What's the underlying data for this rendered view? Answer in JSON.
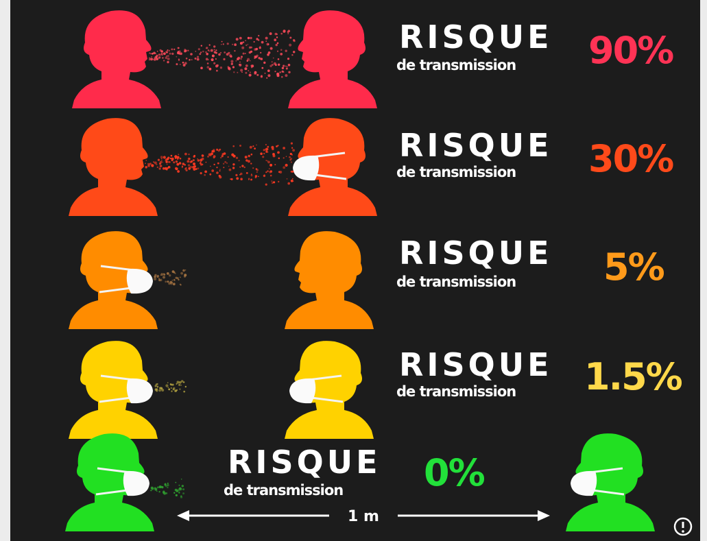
{
  "rows": [
    {
      "title": "RISQUE",
      "subtitle": "de transmission",
      "risk": "90%"
    },
    {
      "title": "RISQUE",
      "subtitle": "de transmission",
      "risk": "30%"
    },
    {
      "title": "RISQUE",
      "subtitle": "de transmission",
      "risk": "5%"
    },
    {
      "title": "RISQUE",
      "subtitle": "de transmission",
      "risk": "1.5%"
    },
    {
      "title": "RISQUE",
      "subtitle": "de transmission",
      "risk": "0%"
    }
  ],
  "distance": "1 m"
}
